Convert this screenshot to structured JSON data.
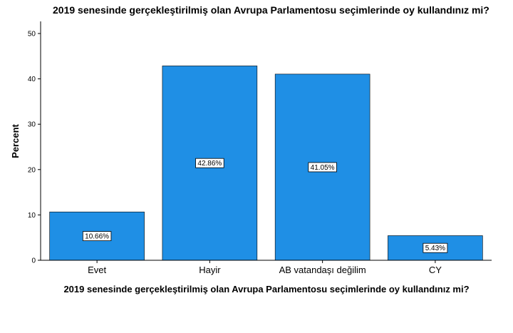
{
  "chart_data": {
    "type": "bar",
    "title": "2019 senesinde gerçekleştirilmiş olan Avrupa Parlamentosu seçimlerinde oy kullandınız mi?",
    "xlabel": "2019 senesinde gerçekleştirilmiş olan Avrupa Parlamentosu seçimlerinde oy kullandınız mi?",
    "ylabel": "Percent",
    "ylim": [
      0,
      50
    ],
    "yticks": [
      0,
      10,
      20,
      30,
      40,
      50
    ],
    "categories": [
      "Evet",
      "Hayir",
      "AB vatandaşı değilim",
      "CY"
    ],
    "values": [
      10.66,
      42.86,
      41.05,
      5.43
    ],
    "data_labels": [
      "10.66%",
      "42.86%",
      "41.05%",
      "5.43%"
    ],
    "bar_color": "#1f8fe5",
    "bar_edge_color": "#000000",
    "grid": false,
    "legend": "none"
  }
}
